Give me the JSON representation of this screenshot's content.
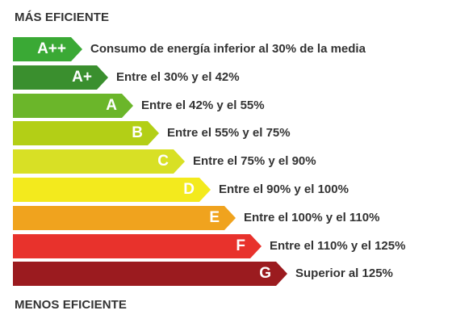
{
  "header": {
    "top_label": "MÁS EFICIENTE",
    "bottom_label": "MENOS EFICIENTE"
  },
  "classes": [
    {
      "label": "A++",
      "description": "Consumo de energía inferior al 30% de la media",
      "color": "#3aa935"
    },
    {
      "label": "A+",
      "description": "Entre el 30% y el 42%",
      "color": "#3a8f2e"
    },
    {
      "label": "A",
      "description": "Entre el 42% y el 55%",
      "color": "#6bb62a"
    },
    {
      "label": "B",
      "description": "Entre el 55% y el 75%",
      "color": "#b3cf16"
    },
    {
      "label": "C",
      "description": "Entre el 75% y el 90%",
      "color": "#d8e025"
    },
    {
      "label": "D",
      "description": "Entre el 90% y el 100%",
      "color": "#f3ea1d"
    },
    {
      "label": "E",
      "description": "Entre el 100% y el 110%",
      "color": "#f0a31e"
    },
    {
      "label": "F",
      "description": "Entre el 110% y el 125%",
      "color": "#e8322c"
    },
    {
      "label": "G",
      "description": "Superior al 125%",
      "color": "#9b1b1f"
    }
  ]
}
